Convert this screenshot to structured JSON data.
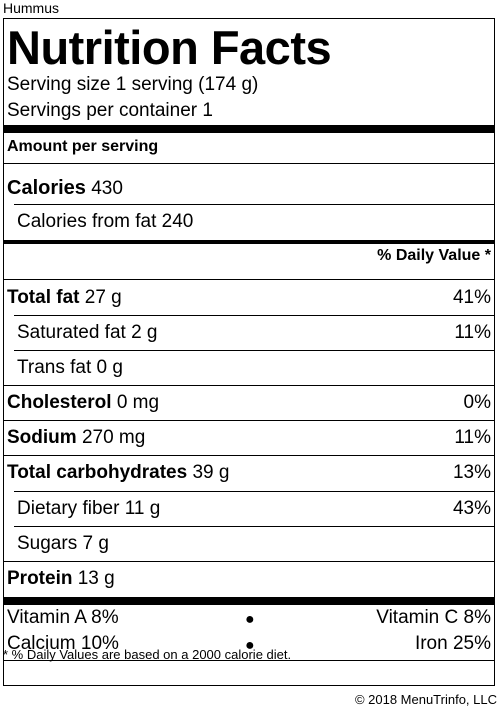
{
  "food_name": "Hummus",
  "title": "Nutrition Facts",
  "serving_size": "Serving size 1 serving (174 g)",
  "servings_per_container": "Servings per container 1",
  "amount_per_serving": "Amount per serving",
  "calories": {
    "label": "Calories",
    "value": "430"
  },
  "calories_from_fat": "Calories from fat 240",
  "daily_value_header": "% Daily Value *",
  "nutrients": [
    {
      "label": "Total fat",
      "amount": "27 g",
      "dv": "41%"
    },
    {
      "label": "Saturated fat",
      "amount": "2 g",
      "dv": "11%"
    },
    {
      "label": "Trans fat",
      "amount": "0 g",
      "dv": ""
    },
    {
      "label": "Cholesterol",
      "amount": "0 mg",
      "dv": "0%"
    },
    {
      "label": "Sodium",
      "amount": "270 mg",
      "dv": "11%"
    },
    {
      "label": "Total carbohydrates",
      "amount": "39 g",
      "dv": "13%"
    },
    {
      "label": "Dietary fiber",
      "amount": "11 g",
      "dv": "43%"
    },
    {
      "label": "Sugars",
      "amount": "7 g",
      "dv": ""
    },
    {
      "label": "Protein",
      "amount": "13 g",
      "dv": ""
    }
  ],
  "vitamins": [
    {
      "left": "Vitamin A 8%",
      "right": "Vitamin C 8%"
    },
    {
      "left": "Calcium 10%",
      "right": "Iron 25%"
    }
  ],
  "footnote": "* % Daily Values are based on a 2000 calorie diet.",
  "copyright": "© 2018 MenuTrinfo, LLC"
}
